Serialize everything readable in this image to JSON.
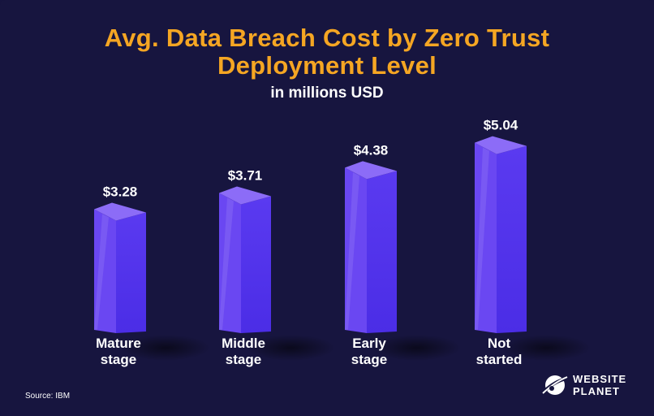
{
  "chart_data": {
    "type": "bar",
    "title_lines": [
      "Avg. Data Breach Cost by Zero Trust",
      "Deployment Level"
    ],
    "subtitle": "in millions USD",
    "categories": [
      [
        "Mature",
        "stage"
      ],
      [
        "Middle",
        "stage"
      ],
      [
        "Early",
        "stage"
      ],
      [
        "Not",
        "started"
      ]
    ],
    "values": [
      3.28,
      3.71,
      4.38,
      5.04
    ],
    "value_labels": [
      "$3.28",
      "$3.71",
      "$4.38",
      "$5.04"
    ],
    "source": "Source: IBM",
    "legend": "none",
    "grid": false,
    "colors": {
      "background": "#17153f",
      "title": "#f5a623",
      "bar_front": "#4b2de6",
      "bar_side": "#6a47f2",
      "bar_top": "#8c6cf7",
      "text": "#ffffff"
    }
  },
  "brand": {
    "icon": "planet-icon",
    "line1": "WEBSITE",
    "line2": "PLANET"
  }
}
